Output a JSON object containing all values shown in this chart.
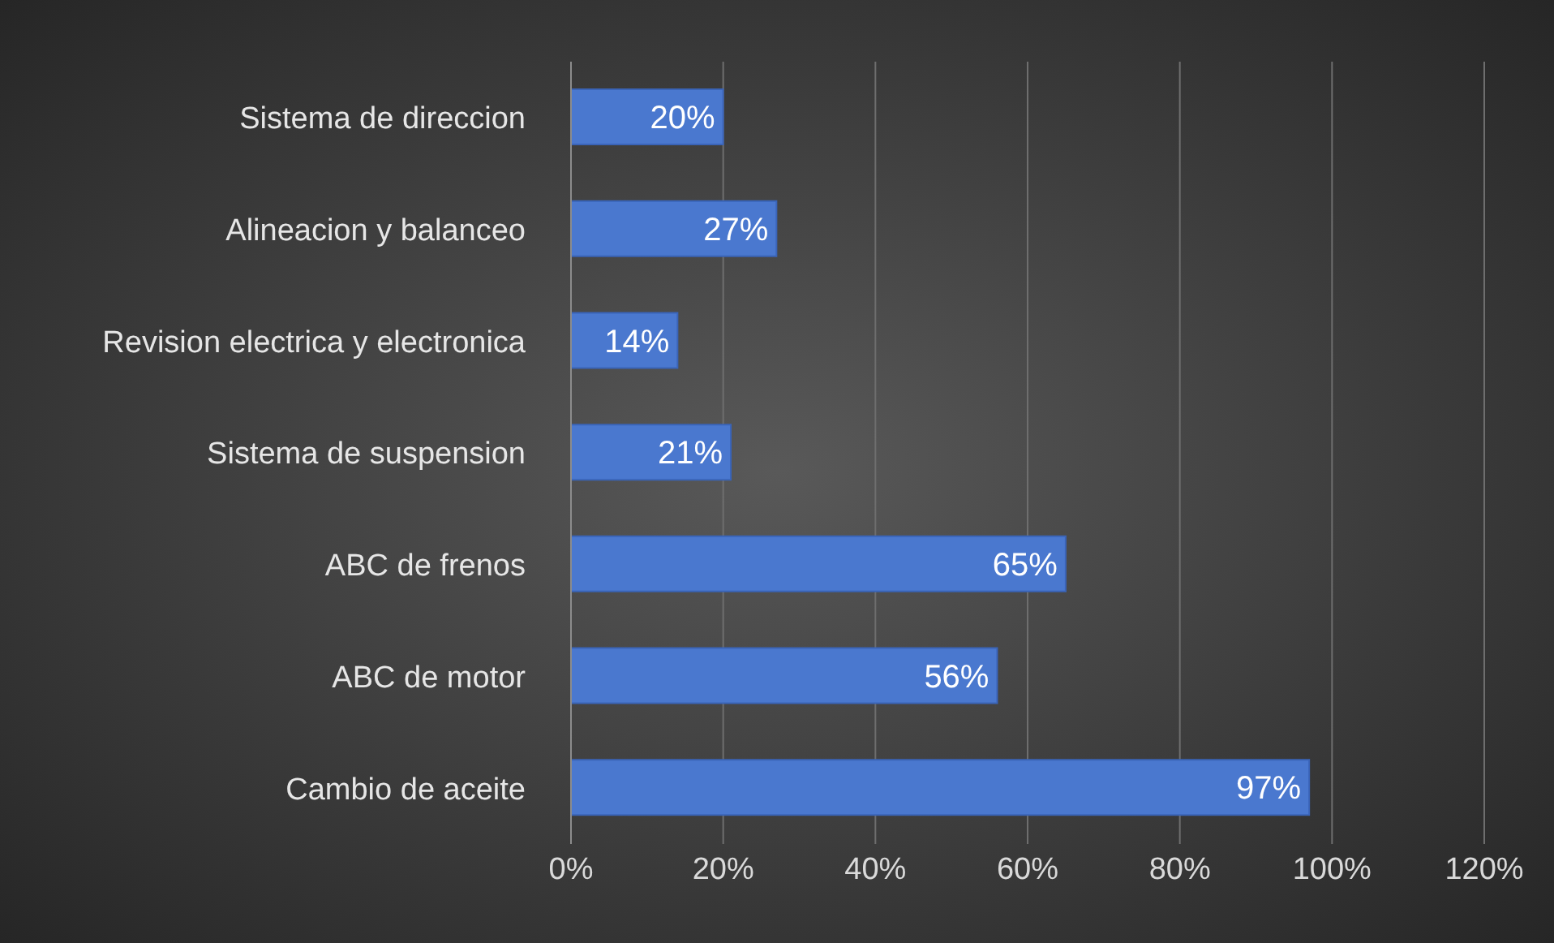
{
  "chart_data": {
    "type": "bar",
    "orientation": "horizontal",
    "categories": [
      "Sistema de direccion",
      "Alineacion y balanceo",
      "Revision electrica y electronica",
      "Sistema de suspension",
      "ABC de frenos",
      "ABC de motor",
      "Cambio de aceite"
    ],
    "values": [
      20,
      27,
      14,
      21,
      65,
      56,
      97
    ],
    "value_labels": [
      "20%",
      "27%",
      "14%",
      "21%",
      "65%",
      "56%",
      "97%"
    ],
    "color": "#4a78cf",
    "xlim": [
      0,
      120
    ],
    "xticks": [
      {
        "value": 0,
        "label": "0%"
      },
      {
        "value": 20,
        "label": "20%"
      },
      {
        "value": 40,
        "label": "40%"
      },
      {
        "value": 60,
        "label": "60%"
      },
      {
        "value": 80,
        "label": "80%"
      },
      {
        "value": 100,
        "label": "100%"
      },
      {
        "value": 120,
        "label": "120%"
      }
    ],
    "grid": "x"
  }
}
